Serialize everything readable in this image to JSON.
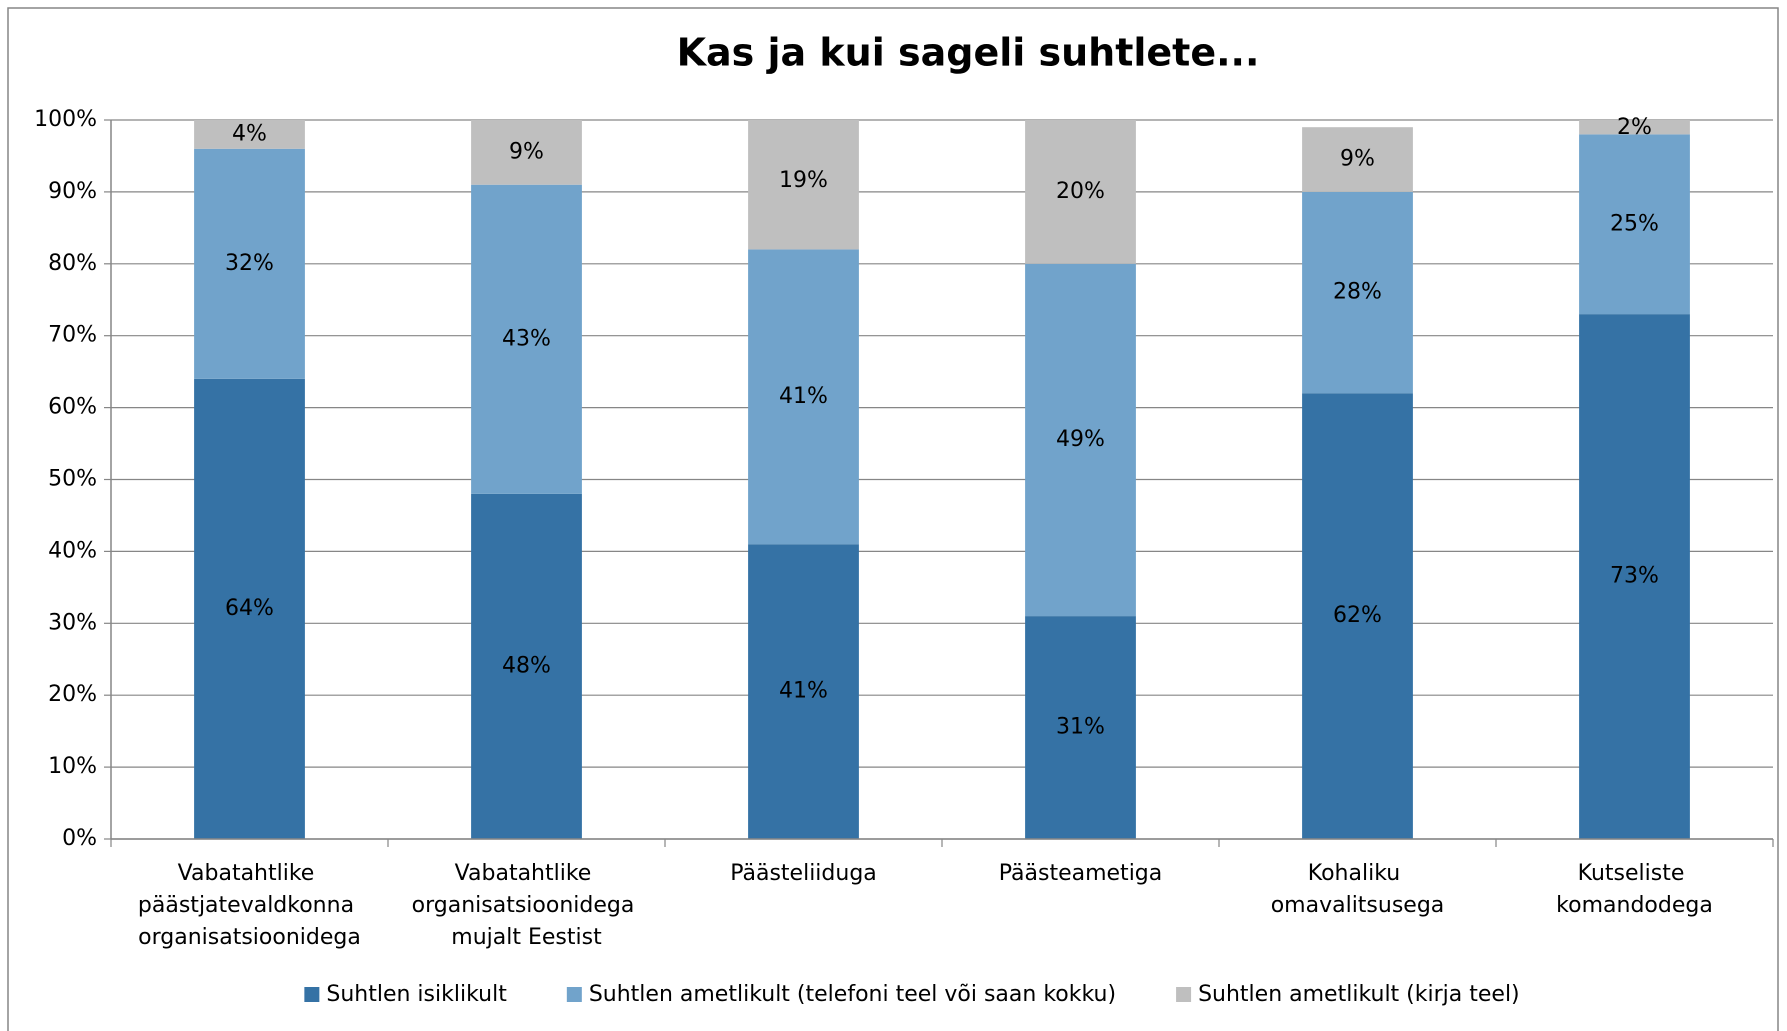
{
  "chart_data": {
    "type": "stacked_bar",
    "title": "Kas ja kui sageli suhtlete...",
    "categories": [
      "Vabatahtlike päästjatevaldkonna organisatsioonidega",
      "Vabatahtlike organisatsioonidega mujalt Eestist",
      "Päästeliiduga",
      "Päästeametiga",
      "Kohaliku omavalitsusega",
      "Kutseliste komandodega"
    ],
    "series": [
      {
        "name": "Suhtlen isiklikult",
        "color": "#3572a5",
        "values": [
          64,
          48,
          41,
          31,
          62,
          73
        ],
        "value_labels": [
          "64%",
          "48%",
          "41%",
          "31%",
          "62%",
          "73%"
        ]
      },
      {
        "name": "Suhtlen ametlikult (telefoni teel või saan kokku)",
        "color": "#71a3cb",
        "values": [
          32,
          43,
          41,
          49,
          28,
          25
        ],
        "value_labels": [
          "32%",
          "43%",
          "41%",
          "49%",
          "28%",
          "25%"
        ]
      },
      {
        "name": "Suhtlen ametlikult (kirja teel)",
        "color": "#bfbfbf",
        "values": [
          4,
          9,
          19,
          20,
          9,
          2
        ],
        "value_labels": [
          "4%",
          "9%",
          "19%",
          "20%",
          "9%",
          "2%"
        ]
      }
    ],
    "ylim": [
      0,
      100
    ],
    "yticks": [
      {
        "value": 0,
        "label": "0%"
      },
      {
        "value": 10,
        "label": "10%"
      },
      {
        "value": 20,
        "label": "20%"
      },
      {
        "value": 30,
        "label": "30%"
      },
      {
        "value": 40,
        "label": "40%"
      },
      {
        "value": 50,
        "label": "50%"
      },
      {
        "value": 60,
        "label": "60%"
      },
      {
        "value": 70,
        "label": "70%"
      },
      {
        "value": 80,
        "label": "80%"
      },
      {
        "value": 90,
        "label": "90%"
      },
      {
        "value": 100,
        "label": "100%"
      }
    ],
    "grid": true,
    "legend": "bottom"
  }
}
